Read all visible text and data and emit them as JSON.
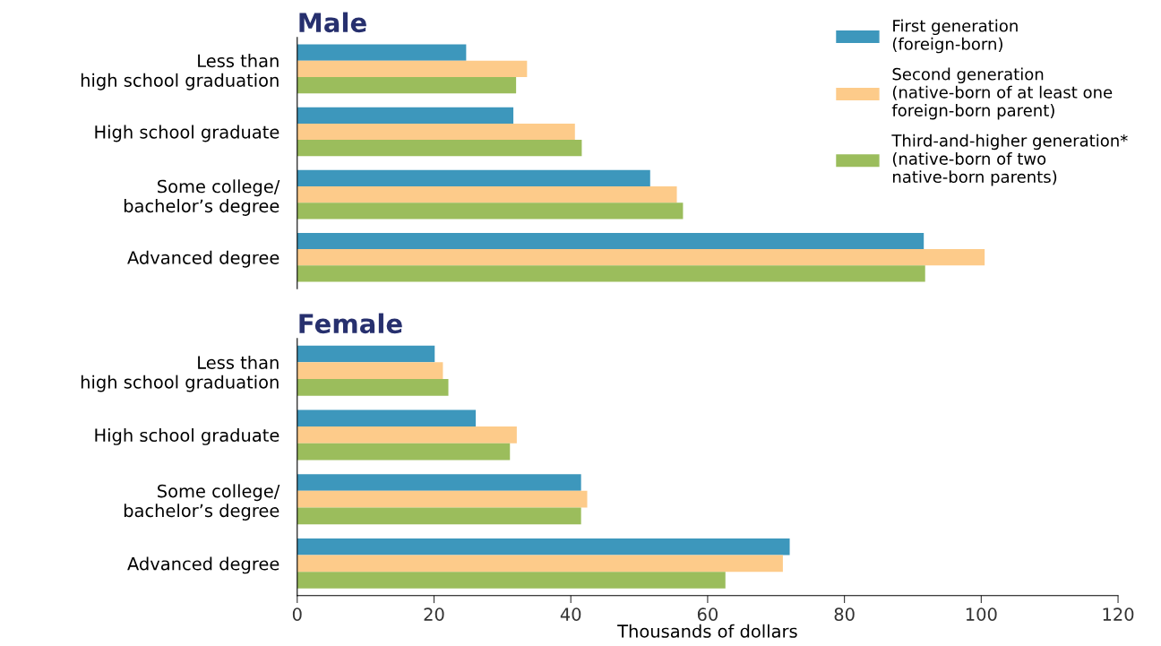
{
  "chart_data": [
    {
      "type": "bar",
      "orientation": "horizontal",
      "title": "Male",
      "categories": [
        "Less than\nhigh school graduation",
        "High school graduate",
        "Some college/\nbachelor’s degree",
        "Advanced degree"
      ],
      "xlim": [
        0,
        120
      ],
      "tick_labels": "y",
      "legend": "top right",
      "grid": false,
      "series": [
        {
          "name": "First generation\n(foreign-born)",
          "color": "#3d97bc",
          "values": [
            24.7,
            31.6,
            51.6,
            91.6
          ]
        },
        {
          "name": "Second generation\n(native-born of at least one\nforeign-born parent)",
          "color": "#fdcb8a",
          "values": [
            33.6,
            40.6,
            55.5,
            100.5
          ]
        },
        {
          "name": "Third-and-higher generation*\n(native-born of two\nnative-born parents)",
          "color": "#9bbd5c",
          "values": [
            32.0,
            41.6,
            56.4,
            91.8
          ]
        }
      ]
    },
    {
      "type": "bar",
      "orientation": "horizontal",
      "title": "Female",
      "categories": [
        "Less than\nhigh school graduation",
        "High school graduate",
        "Some college/\nbachelor’s degree",
        "Advanced degree"
      ],
      "xlim": [
        0,
        120
      ],
      "xticks": [
        0,
        20,
        40,
        60,
        80,
        100,
        120
      ],
      "xlabel": "Thousands of dollars",
      "grid": false,
      "series": [
        {
          "color": "#3d97bc",
          "values": [
            20.1,
            26.1,
            41.5,
            72.0
          ]
        },
        {
          "color": "#fdcb8a",
          "values": [
            21.3,
            32.1,
            42.4,
            71.0
          ]
        },
        {
          "color": "#9bbd5c",
          "values": [
            22.1,
            31.1,
            41.5,
            62.6
          ]
        }
      ]
    }
  ]
}
